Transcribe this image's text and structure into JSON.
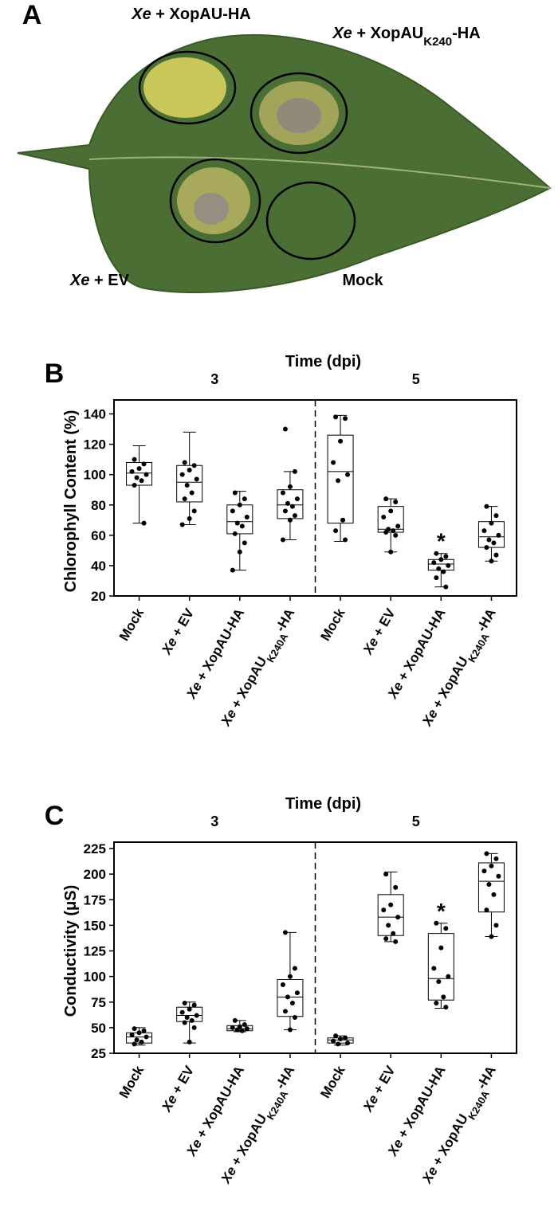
{
  "panel_a": {
    "letter": "A",
    "italic": "Xe",
    "subscript": "K240",
    "labels": [
      "Xe + XopAU-HA",
      "Xe + XopAUK240-HA",
      "Xe + EV",
      "Mock"
    ]
  },
  "chart_data": [
    {
      "type": "box",
      "letter": "B",
      "title": "Time (dpi)",
      "ylabel": "Chlorophyll Content (%)",
      "italic": "Xe",
      "subscript": "K240A",
      "groups": [
        "3",
        "5"
      ],
      "categories": [
        "Mock",
        "Xe + EV",
        "Xe + XopAU-HA",
        "Xe + XopAUK240A-HA",
        "Mock",
        "Xe + EV",
        "Xe + XopAU-HA",
        "Xe + XopAUK240A-HA"
      ],
      "ylim": [
        20,
        145
      ],
      "yticks": [
        20,
        40,
        60,
        80,
        100,
        120,
        140
      ],
      "boxes": [
        {
          "min": 68,
          "q1": 93,
          "median": 101,
          "q3": 108,
          "max": 119,
          "points": [
            110,
            107,
            104,
            102,
            100,
            98,
            96,
            93,
            68
          ]
        },
        {
          "min": 67,
          "q1": 82,
          "median": 95,
          "q3": 106,
          "max": 128,
          "points": [
            108,
            106,
            103,
            100,
            97,
            93,
            88,
            84,
            76,
            71,
            67
          ]
        },
        {
          "min": 37,
          "q1": 61,
          "median": 69,
          "q3": 80,
          "max": 89,
          "points": [
            88,
            84,
            80,
            76,
            72,
            68,
            66,
            61,
            55,
            49,
            37
          ]
        },
        {
          "min": 57,
          "q1": 71,
          "median": 80,
          "q3": 90,
          "max": 102,
          "points": [
            130,
            102,
            92,
            88,
            84,
            81,
            79,
            76,
            73,
            70,
            57
          ]
        },
        {
          "min": 56,
          "q1": 68,
          "median": 102,
          "q3": 126,
          "max": 139,
          "points": [
            138,
            137,
            122,
            108,
            100,
            96,
            70,
            63,
            57
          ]
        },
        {
          "min": 49,
          "q1": 62,
          "median": 64,
          "q3": 79,
          "max": 84,
          "points": [
            84,
            82,
            76,
            72,
            66,
            64,
            63,
            62,
            60,
            49
          ]
        },
        {
          "min": 26,
          "q1": 37,
          "median": 41,
          "q3": 44,
          "max": 48,
          "points": [
            48,
            46,
            44,
            42,
            40,
            38,
            36,
            32,
            26
          ],
          "annotation": "*"
        },
        {
          "min": 43,
          "q1": 52,
          "median": 59,
          "q3": 69,
          "max": 79,
          "points": [
            79,
            73,
            68,
            63,
            60,
            57,
            55,
            52,
            47,
            43
          ]
        }
      ]
    },
    {
      "type": "box",
      "letter": "C",
      "title": "Time (dpi)",
      "ylabel": "Conductivity (μS)",
      "italic": "Xe",
      "subscript": "K240A",
      "groups": [
        "3",
        "5"
      ],
      "categories": [
        "Mock",
        "Xe + EV",
        "Xe + XopAU-HA",
        "Xe + XopAUK240A-HA",
        "Mock",
        "Xe + EV",
        "Xe + XopAU-HA",
        "Xe + XopAUK240A-HA"
      ],
      "ylim": [
        25,
        225
      ],
      "yticks": [
        25,
        50,
        75,
        100,
        125,
        150,
        175,
        200,
        225
      ],
      "boxes": [
        {
          "min": 33,
          "q1": 35,
          "median": 41,
          "q3": 45,
          "max": 50,
          "points": [
            49,
            47,
            45,
            43,
            41,
            38,
            36,
            34
          ]
        },
        {
          "min": 35,
          "q1": 56,
          "median": 62,
          "q3": 70,
          "max": 75,
          "points": [
            74,
            72,
            68,
            65,
            62,
            60,
            57,
            55,
            50,
            36
          ]
        },
        {
          "min": 46,
          "q1": 47,
          "median": 49,
          "q3": 52,
          "max": 57,
          "points": [
            57,
            53,
            51,
            50,
            49,
            48,
            47
          ]
        },
        {
          "min": 48,
          "q1": 61,
          "median": 80,
          "q3": 97,
          "max": 143,
          "points": [
            143,
            108,
            100,
            92,
            84,
            80,
            74,
            66,
            60,
            48
          ]
        },
        {
          "min": 33,
          "q1": 35,
          "median": 38,
          "q3": 40,
          "max": 42,
          "points": [
            42,
            40,
            39,
            37,
            35,
            34
          ]
        },
        {
          "min": 134,
          "q1": 140,
          "median": 158,
          "q3": 180,
          "max": 202,
          "points": [
            200,
            187,
            170,
            165,
            158,
            150,
            142,
            137,
            134
          ]
        },
        {
          "min": 69,
          "q1": 77,
          "median": 98,
          "q3": 142,
          "max": 152,
          "points": [
            152,
            147,
            128,
            108,
            100,
            95,
            80,
            74,
            70
          ],
          "annotation": "*"
        },
        {
          "min": 139,
          "q1": 163,
          "median": 193,
          "q3": 211,
          "max": 220,
          "points": [
            220,
            215,
            208,
            203,
            198,
            190,
            180,
            165,
            150,
            139
          ]
        }
      ]
    }
  ]
}
